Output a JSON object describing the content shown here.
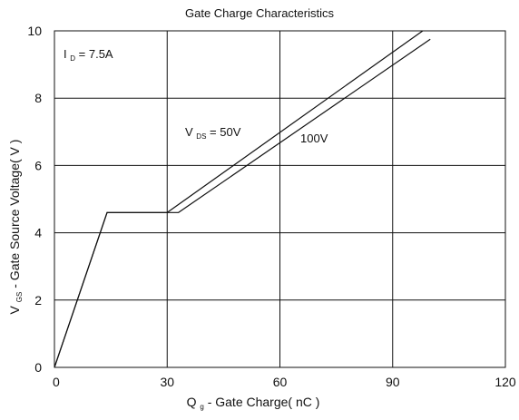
{
  "chart_data": {
    "type": "line",
    "title": "Gate Charge Characteristics",
    "xlabel": {
      "main": "Q",
      "sub": "g",
      "rest": " - Gate Charge( nC )"
    },
    "ylabel": {
      "main": "V",
      "sub": "GS",
      "rest": " - Gate Source Voltage( V )"
    },
    "xlim": [
      0,
      120
    ],
    "ylim": [
      0,
      10
    ],
    "xticks": [
      0,
      30,
      60,
      90,
      120
    ],
    "yticks": [
      0,
      2,
      4,
      6,
      8,
      10
    ],
    "grid": true,
    "legend": "none",
    "series": [
      {
        "label_main": "V",
        "label_sub": "DS",
        "label_rest": "  = 50V",
        "x": [
          0,
          14,
          30,
          98
        ],
        "y": [
          0,
          4.6,
          4.6,
          10
        ]
      },
      {
        "label_main": "",
        "label_sub": "",
        "label_rest": "100V",
        "x": [
          0,
          14,
          33,
          100
        ],
        "y": [
          0,
          4.6,
          4.6,
          9.75
        ]
      }
    ],
    "annotations": [
      {
        "main": "I",
        "sub": "D",
        "rest": " = 7.5A"
      }
    ],
    "colors": {
      "axis": "#111111",
      "grid": "#111111",
      "series": "#111111"
    }
  }
}
